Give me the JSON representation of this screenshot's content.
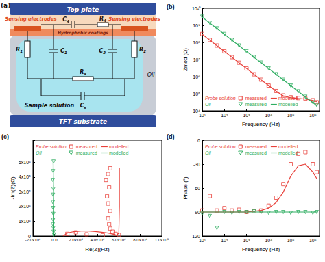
{
  "chart_data": [
    {
      "type": "line",
      "title": "(b)",
      "x_label": "Frequency (Hz)",
      "y_label": "Zmod (Ω)",
      "log": true,
      "grid": false,
      "legend": "lower left",
      "annotations": [
        "Probe solution",
        "Oil"
      ],
      "xlim": [
        10,
        2000000
      ],
      "xticks": [
        {
          "value": 10,
          "label": "10¹"
        },
        {
          "value": 100,
          "label": "10²"
        },
        {
          "value": 1000,
          "label": "10³"
        },
        {
          "value": 10000,
          "label": "10⁴"
        },
        {
          "value": 100000,
          "label": "10⁵"
        },
        {
          "value": 1000000,
          "label": "10⁶"
        }
      ],
      "ylim": [
        10000,
        10000000000
      ],
      "yticks": [
        {
          "value": 10000,
          "label": "10⁴"
        },
        {
          "value": 100000,
          "label": "10⁵"
        },
        {
          "value": 1000000,
          "label": "10⁶"
        },
        {
          "value": 10000000,
          "label": "10⁷"
        },
        {
          "value": 100000000,
          "label": "10⁸"
        },
        {
          "value": 1000000000,
          "label": "10⁹"
        },
        {
          "value": 10000000000,
          "label": "10¹⁰"
        }
      ],
      "x": [
        10,
        22,
        46,
        100,
        220,
        460,
        1000,
        2200,
        4600,
        10000,
        22000,
        46000,
        100000,
        220000,
        460000,
        1000000,
        1500000
      ],
      "series": [
        {
          "name": "measured",
          "color": "#e8403a",
          "type": "scatter",
          "marker": "square",
          "values": [
            310000000.0,
            140000000.0,
            66000000.0,
            30000000.0,
            13800000.0,
            6500000.0,
            3000000.0,
            1370000.0,
            660000.0,
            300000.0,
            145000.0,
            80000.0,
            62000.0,
            56000.0,
            52000.0,
            42000.0,
            32000.0
          ]
        },
        {
          "name": "modelled",
          "color": "#e8403a",
          "type": "line",
          "line_style": "solid",
          "values": [
            300000000.0,
            136000000.0,
            65000000.0,
            30000000.0,
            13600000.0,
            6500000.0,
            3000000.0,
            1360000.0,
            650000.0,
            300000.0,
            140000.0,
            75000.0,
            58000.0,
            53000.0,
            49000.0,
            40000.0,
            34000.0
          ]
        },
        {
          "name": "measured",
          "color": "#2fae62",
          "type": "scatter",
          "marker": "triangle-down",
          "values": [
            3200000000.0,
            1420000000.0,
            670000000.0,
            310000000.0,
            140000000.0,
            66000000.0,
            30500000.0,
            14000000.0,
            6600000.0,
            3050000.0,
            1390000.0,
            660000.0,
            305000.0,
            140000.0,
            67000.0,
            32000.0,
            22000.0
          ]
        },
        {
          "name": "modelled",
          "color": "#2fae62",
          "type": "line",
          "line_style": "solid",
          "values": [
            3000000000.0,
            1360000000.0,
            650000000.0,
            300000000.0,
            136000000.0,
            65000000.0,
            30000000.0,
            13600000.0,
            6500000.0,
            3000000.0,
            1360000.0,
            650000.0,
            300000.0,
            136000.0,
            65000.0,
            30000.0,
            20000.0
          ]
        }
      ]
    },
    {
      "type": "line",
      "title": "(c)",
      "x_label": "Re(Z)(Hz)",
      "y_label": "-Im(Z)(Ω)",
      "grid": false,
      "legend": "upper left",
      "annotations": [
        "Probe solution",
        "Oil"
      ],
      "xlim": [
        -20000,
        100000
      ],
      "xticks": [
        {
          "value": -20000,
          "label": "-2.0x10⁴"
        },
        {
          "value": 0,
          "label": "0.0"
        },
        {
          "value": 20000,
          "label": "2.0x10⁴"
        },
        {
          "value": 40000,
          "label": "4.0x10⁴"
        },
        {
          "value": 60000,
          "label": "6.0x10⁴"
        },
        {
          "value": 80000,
          "label": "8.0x10⁴"
        },
        {
          "value": 100000,
          "label": "1.0x10⁵"
        }
      ],
      "ylim": [
        0,
        650000
      ],
      "yticks": [
        0,
        {
          "value": 100000,
          "label": "1x10⁵"
        },
        {
          "value": 200000,
          "label": "2x10⁵"
        },
        {
          "value": 300000,
          "label": "3x10⁵"
        },
        {
          "value": 400000,
          "label": "4x10⁵"
        },
        {
          "value": 500000,
          "label": "5x10⁵"
        }
      ],
      "series": [
        {
          "name": "measured",
          "color": "#e8403a",
          "type": "scatter",
          "marker": "square",
          "x": [
            52000,
            50000,
            48000,
            51000,
            49000,
            50000,
            52000,
            50000,
            51000,
            52000,
            54000,
            57000,
            60000,
            30000,
            20000,
            12000,
            45000
          ],
          "values": [
            460000,
            420000,
            380000,
            330000,
            270000,
            220000,
            170000,
            120000,
            80000,
            50000,
            30000,
            15000,
            8000,
            12000,
            25000,
            15000,
            5000
          ]
        },
        {
          "name": "modelled",
          "color": "#e8403a",
          "type": "line",
          "line_style": "solid",
          "x": [
            8000,
            12000,
            18000,
            25000,
            32000,
            38000,
            44000,
            50000,
            55000,
            58000,
            60000,
            60500,
            60500
          ],
          "values": [
            0,
            20000,
            30000,
            34000,
            34000,
            31000,
            26000,
            20000,
            12000,
            6000,
            20000,
            200000,
            460000
          ]
        },
        {
          "name": "measured",
          "color": "#2fae62",
          "type": "scatter",
          "marker": "triangle-down",
          "x": [
            -800,
            -1200,
            -1500,
            -1000,
            -1300,
            -1500,
            -1200,
            -1000,
            -1200,
            -1500,
            -1000,
            -800,
            -500
          ],
          "values": [
            505000,
            440000,
            380000,
            320000,
            280000,
            230000,
            190000,
            150000,
            110000,
            80000,
            55000,
            30000,
            10000
          ]
        },
        {
          "name": "modelled",
          "color": "#2fae62",
          "type": "line",
          "line_style": "solid",
          "x": [
            -500,
            -1200
          ],
          "values": [
            0,
            510000
          ]
        }
      ]
    },
    {
      "type": "line",
      "title": "(d)",
      "x_label": "Frequency (Hz)",
      "y_label": "Phase (°)",
      "log": "x",
      "grid": false,
      "legend": "upper left",
      "annotations": [
        "Probe solution",
        "Oil"
      ],
      "xlim": [
        10,
        2000000
      ],
      "xticks": [
        {
          "value": 10,
          "label": "10¹"
        },
        {
          "value": 100,
          "label": "10²"
        },
        {
          "value": 1000,
          "label": "10³"
        },
        {
          "value": 10000,
          "label": "10⁴"
        },
        {
          "value": 100000,
          "label": "10⁵"
        },
        {
          "value": 1000000,
          "label": "10⁶"
        }
      ],
      "ylim": [
        -120,
        0
      ],
      "yticks": [
        -120,
        -90,
        -60,
        -30,
        0
      ],
      "x": [
        10,
        22,
        46,
        100,
        220,
        460,
        1000,
        2200,
        4600,
        10000,
        22000,
        46000,
        100000,
        220000,
        460000,
        1000000,
        1500000
      ],
      "series": [
        {
          "name": "measured",
          "color": "#e8403a",
          "type": "scatter",
          "marker": "square",
          "values": [
            -88,
            -70,
            -88,
            -85,
            -88,
            -87,
            -90,
            -89,
            -88,
            -82,
            -72,
            -55,
            -30,
            -17,
            -15,
            -30,
            -40
          ]
        },
        {
          "name": "modelled",
          "color": "#e8403a",
          "type": "line",
          "line_style": "solid",
          "values": [
            -90,
            -90,
            -90,
            -90,
            -90,
            -90,
            -90,
            -89,
            -88,
            -85,
            -78,
            -65,
            -45,
            -32,
            -30,
            -40,
            -48
          ]
        },
        {
          "name": "measured",
          "color": "#2fae62",
          "type": "scatter",
          "marker": "triangle-down",
          "values": [
            -92,
            -95,
            -110,
            -90,
            -91,
            -90,
            -90,
            -89,
            -90,
            -91,
            -90,
            -90,
            -91,
            -90,
            -90,
            -91,
            -90
          ]
        },
        {
          "name": "modelled",
          "color": "#2fae62",
          "type": "line",
          "line_style": "solid",
          "values": [
            -90,
            -90,
            -90,
            -90,
            -90,
            -90,
            -90,
            -90,
            -90,
            -90,
            -90,
            -90,
            -90,
            -90,
            -90,
            -90,
            -90
          ]
        }
      ]
    }
  ],
  "diagram": {
    "title": "(a)",
    "top_plate": "Top plate",
    "sensing_electrodes": [
      "Sensing electrodes",
      "Sensing electrodes"
    ],
    "hydrophobic_coatings": "Hydrophobic coatings",
    "sample_solution": "Sample solution",
    "oil": "Oil",
    "tft_substrate": "TFT substrate",
    "components": [
      "C4",
      "R4",
      "R1",
      "C1",
      "C2",
      "R2",
      "Rs",
      "Cs"
    ]
  }
}
